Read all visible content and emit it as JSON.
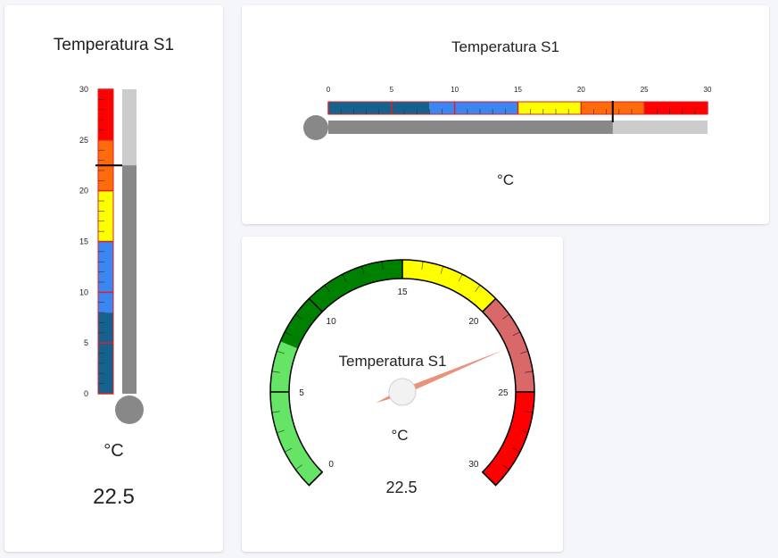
{
  "widgets": {
    "vertical_thermometer": {
      "title": "Temperatura S1",
      "unit": "°C",
      "value": 22.5,
      "value_label": "22.5",
      "min": 0,
      "max": 30,
      "tick_labels": [
        "0",
        "5",
        "10",
        "15",
        "20",
        "25",
        "30"
      ]
    },
    "horizontal_thermometer": {
      "title": "Temperatura S1",
      "unit": "°C",
      "value": 22.5,
      "min": 0,
      "max": 30,
      "tick_labels": [
        "0",
        "5",
        "10",
        "15",
        "20",
        "25",
        "30"
      ]
    },
    "gauge": {
      "title": "Temperatura S1",
      "unit": "°C",
      "value": 22.5,
      "value_label": "22.5",
      "min": 0,
      "max": 30,
      "tick_labels": [
        "0",
        "5",
        "10",
        "15",
        "20",
        "25",
        "30"
      ]
    }
  },
  "thermo_bands": [
    {
      "from": 0,
      "to": 8,
      "color": "#15628f"
    },
    {
      "from": 8,
      "to": 15,
      "color": "#3b86f0"
    },
    {
      "from": 15,
      "to": 20,
      "color": "#ffff00"
    },
    {
      "from": 20,
      "to": 25,
      "color": "#ff6a0a"
    },
    {
      "from": 25,
      "to": 30,
      "color": "#ff0000"
    }
  ],
  "gauge_bands": [
    {
      "from": 0,
      "to": 7.5,
      "color": "#66e466"
    },
    {
      "from": 7.5,
      "to": 15,
      "color": "#008000"
    },
    {
      "from": 15,
      "to": 20,
      "color": "#ffff00"
    },
    {
      "from": 20,
      "to": 25,
      "color": "#d96868"
    },
    {
      "from": 25,
      "to": 30,
      "color": "#ff0000"
    }
  ],
  "colors": {
    "bulb": "#888888",
    "fill": "#888888",
    "track": "#cccccc",
    "band_border": "#dd2222",
    "needle": "#e8927c"
  }
}
